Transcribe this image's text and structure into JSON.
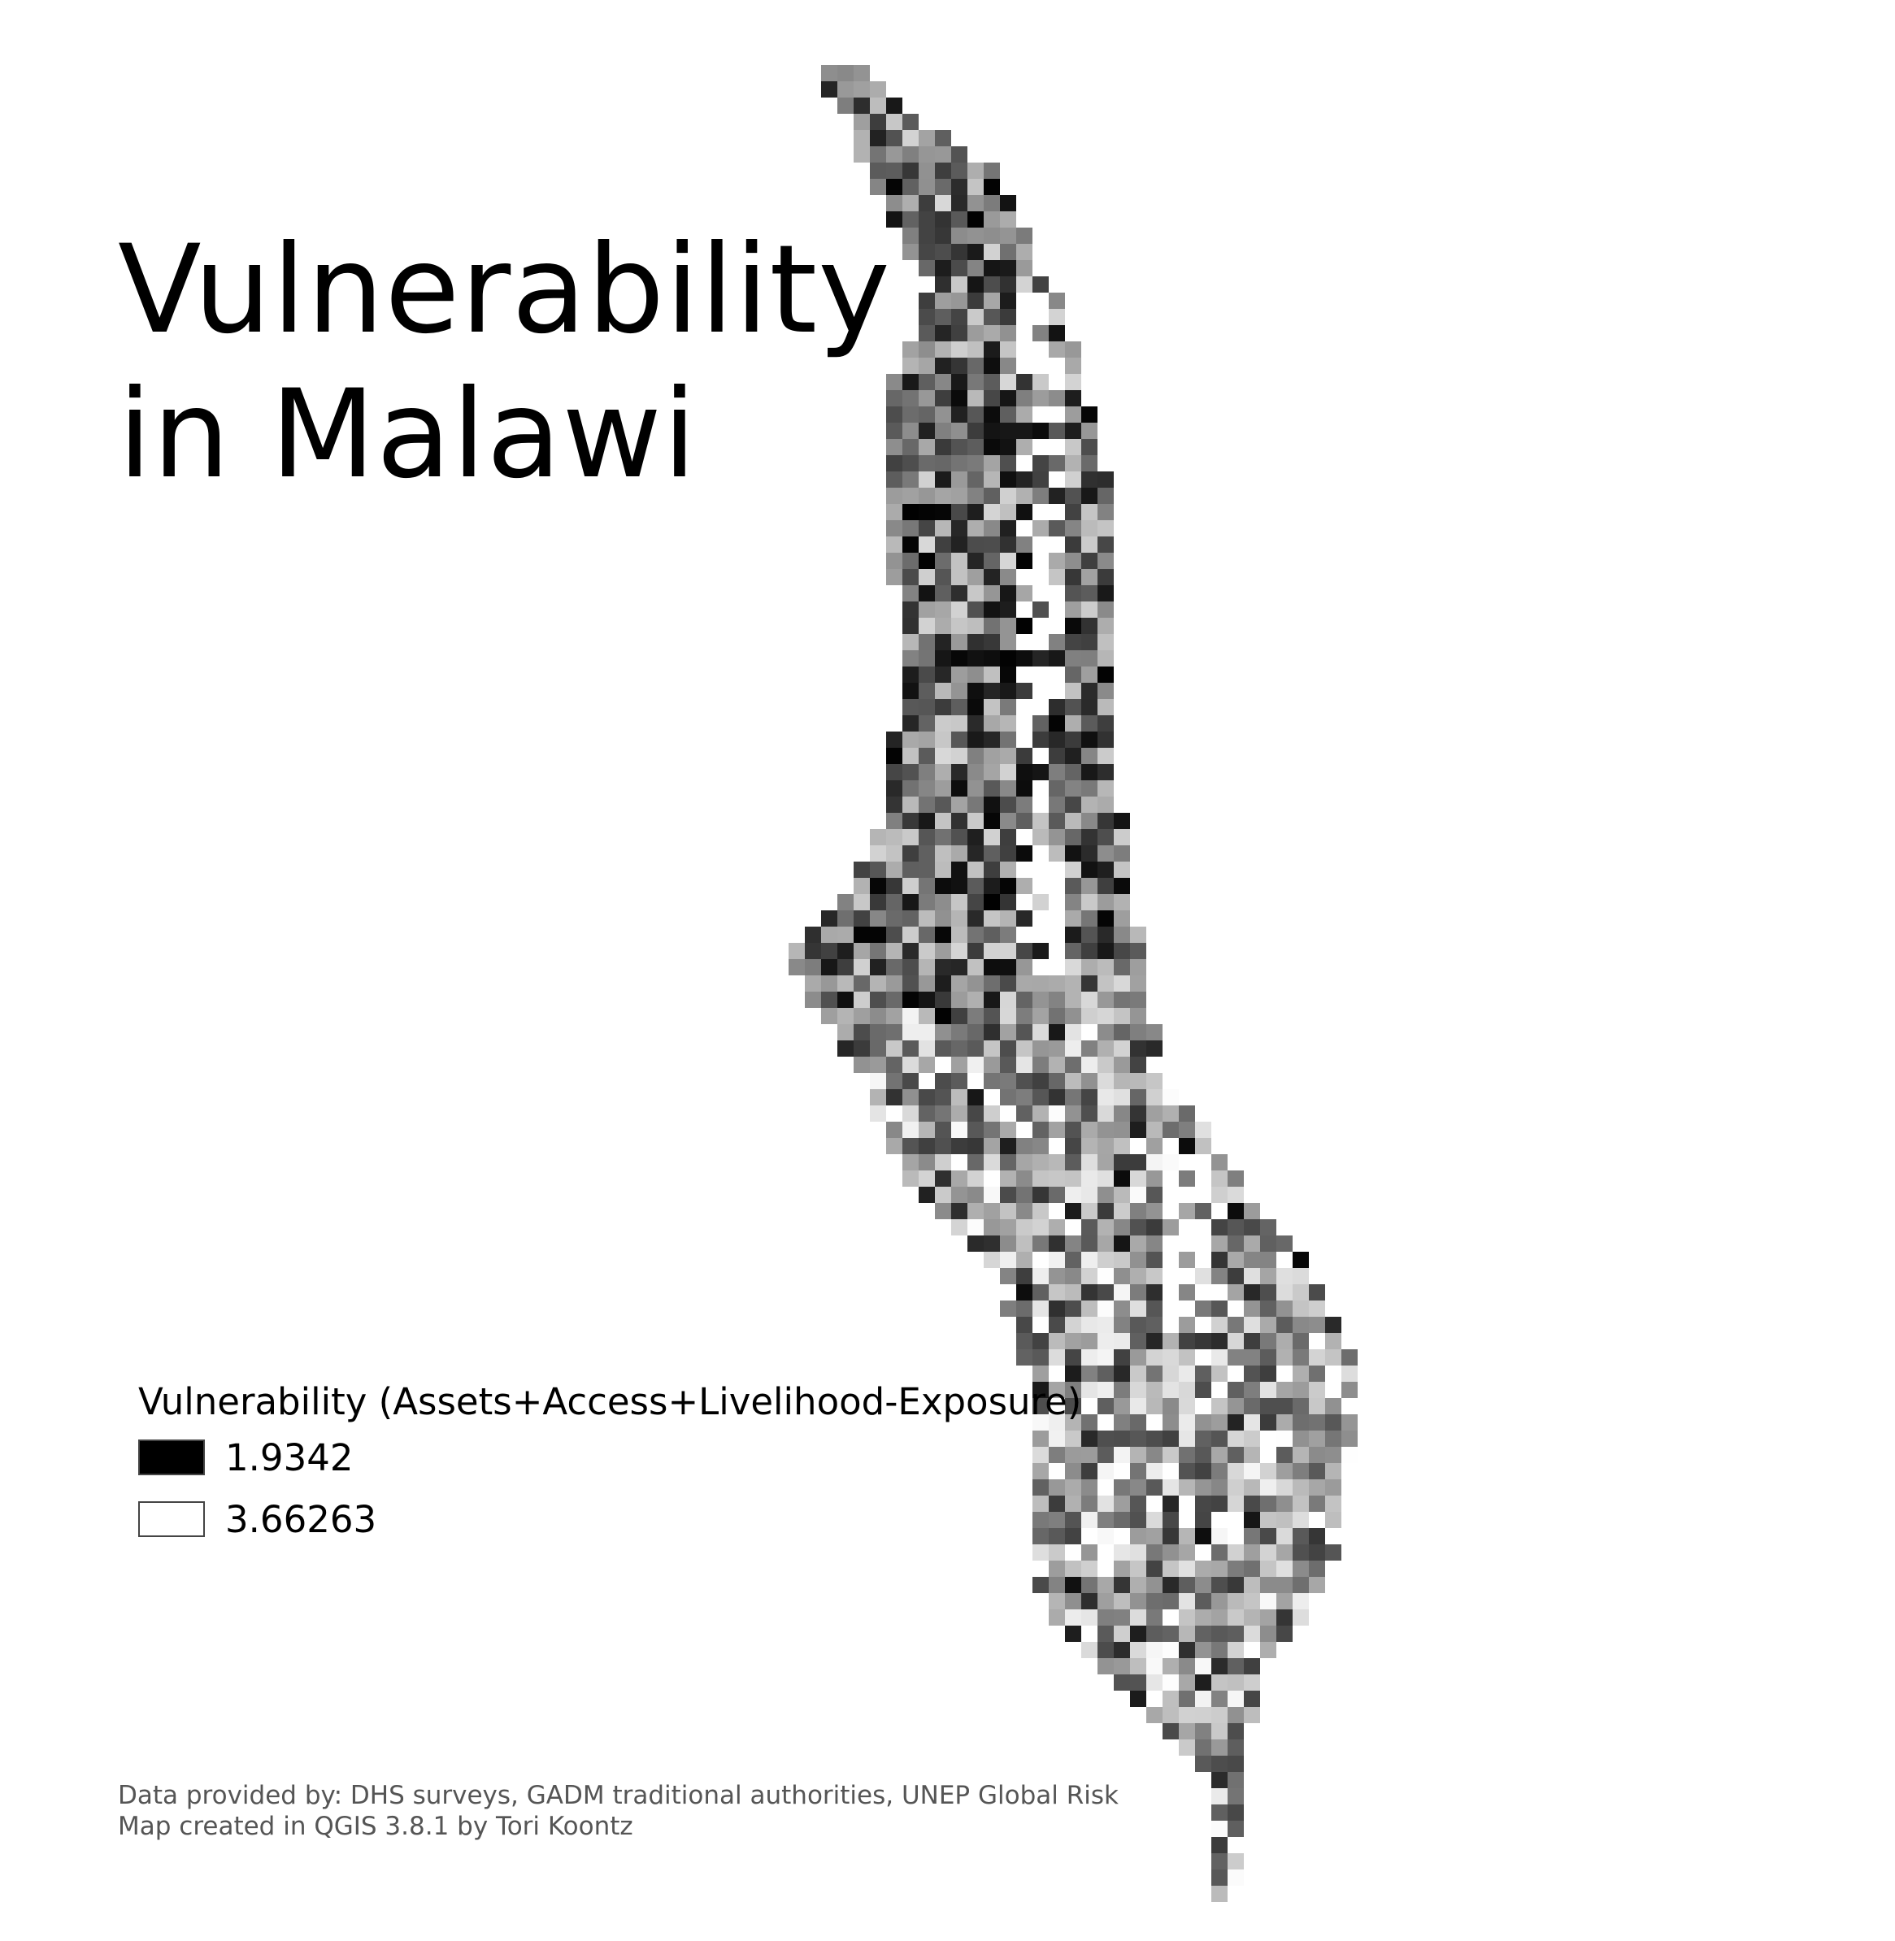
{
  "map": {
    "title_line1": "Vulnerability",
    "title_line2": "in Malawi",
    "colors": {
      "low": "#000000",
      "high": "#ffffff"
    }
  },
  "legend": {
    "title": "Vulnerability (Assets+Access+Livelihood-Exposure)",
    "items": [
      {
        "label": "1.9342",
        "color": "#000000"
      },
      {
        "label": "3.66263",
        "color": "#ffffff"
      }
    ]
  },
  "credits": {
    "line1": "Data provided by: DHS surveys, GADM traditional authorities, UNEP Global Risk",
    "line2": "Map created in QGIS 3.8.1 by Tori Koontz"
  }
}
